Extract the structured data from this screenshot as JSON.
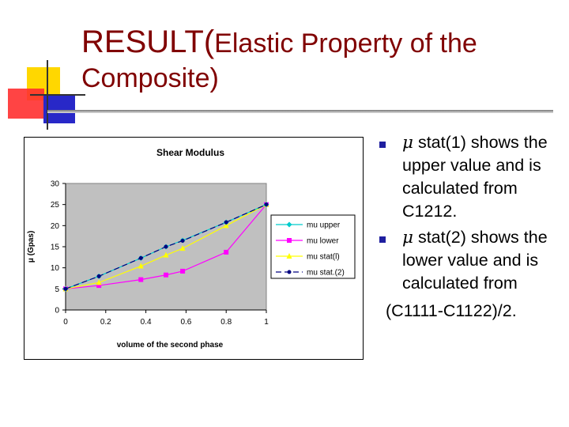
{
  "slide": {
    "title_main": "RESULT(",
    "title_rest": "Elastic Property of the Composite)",
    "colors": {
      "title": "#800000",
      "bullet": "#1f1f9f"
    }
  },
  "bullets": [
    {
      "symbol": "μ",
      "text": " stat(1) shows the upper value and is calculated from C1212."
    },
    {
      "symbol": "μ",
      "text": " stat(2) shows the lower value and is calculated from"
    }
  ],
  "bullet_tail": "(C1111-C1122)/2.",
  "chart_data": {
    "type": "line",
    "title": "Shear Modulus",
    "xlabel": "volume of the second phase",
    "ylabel": "μ  (Gpas)",
    "xlim": [
      0,
      1
    ],
    "ylim": [
      0,
      30
    ],
    "xticks": [
      0,
      0.2,
      0.4,
      0.6,
      0.8,
      1
    ],
    "xtick_labels": [
      "0",
      "0.2",
      "0.4",
      "0.6",
      "0.8",
      "1"
    ],
    "yticks": [
      0,
      5,
      10,
      15,
      20,
      25,
      30
    ],
    "ytick_labels": [
      "0",
      "5",
      "10",
      "15",
      "20",
      "25",
      "30"
    ],
    "grid": false,
    "legend_position": "right",
    "plot_background": "#c0c0c0",
    "series": [
      {
        "name": "mu upper",
        "color": "#00cccc",
        "marker": "diamond",
        "dash": false,
        "x": [
          0,
          0.166,
          0.375,
          0.5,
          0.583,
          0.8,
          1
        ],
        "y": [
          5,
          8,
          12.3,
          15,
          16.5,
          20.8,
          25
        ]
      },
      {
        "name": "mu lower",
        "color": "#ff00ff",
        "marker": "square",
        "dash": false,
        "x": [
          0,
          0.166,
          0.375,
          0.5,
          0.583,
          0.8,
          1
        ],
        "y": [
          5,
          5.8,
          7.2,
          8.3,
          9.2,
          13.7,
          25
        ]
      },
      {
        "name": "mu stat(l)",
        "color": "#ffff00",
        "marker": "triangle",
        "dash": false,
        "x": [
          0,
          0.166,
          0.375,
          0.5,
          0.583,
          0.8,
          1
        ],
        "y": [
          5,
          6.5,
          10.4,
          13,
          14.6,
          20,
          25
        ]
      },
      {
        "name": "mu stat.(2)",
        "color": "#000080",
        "marker": "circle",
        "dash": true,
        "x": [
          0,
          0.166,
          0.375,
          0.5,
          0.583,
          0.8,
          1
        ],
        "y": [
          5,
          8,
          12.3,
          15,
          16.4,
          20.8,
          25
        ]
      }
    ]
  }
}
